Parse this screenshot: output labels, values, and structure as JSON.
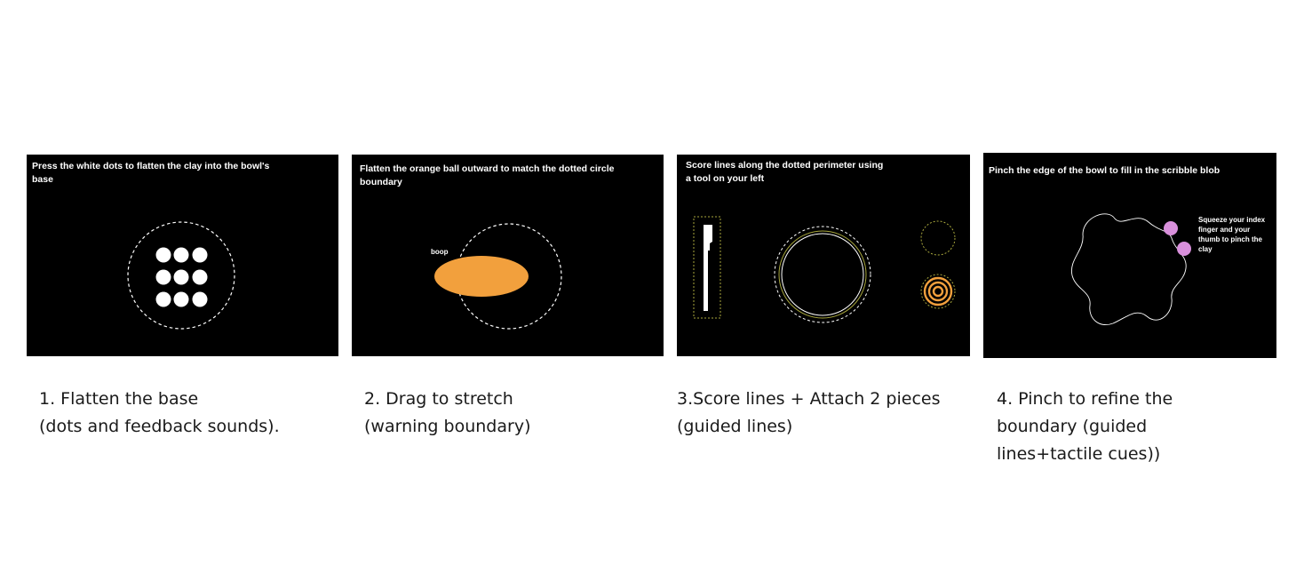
{
  "steps": [
    {
      "instruction": "Press the white dots to flatten the clay into the bowl's base",
      "caption_lines": [
        "1.  Flatten the base",
        "(dots and feedback sounds)."
      ],
      "dot_count": 9
    },
    {
      "instruction": "Flatten the orange ball outward to match the dotted circle boundary",
      "sound_label": "boop",
      "caption_lines": [
        "2.  Drag to stretch",
        "(warning boundary)"
      ]
    },
    {
      "instruction": "Score lines along the dotted perimeter using a tool on your left",
      "caption_lines": [
        "3.Score lines + Attach 2 pieces",
        "(guided lines)"
      ]
    },
    {
      "instruction": "Pinch the edge of the bowl to fill in the scribble blob",
      "hint": "Squeeze your index finger and your thumb to pinch the clay",
      "caption_lines": [
        "4. Pinch to refine the",
        "boundary (guided",
        "lines+tactile cues))"
      ]
    }
  ],
  "colors": {
    "panel_bg": "#000000",
    "clay_orange": "#f2a03d",
    "guide_olive": "#a7a63c",
    "pinch_pink": "#d990dc",
    "text_white": "#ffffff",
    "caption_text": "#1a1a1a"
  },
  "icons": [
    "scoring-tool-icon",
    "spiral-piece-icon"
  ]
}
